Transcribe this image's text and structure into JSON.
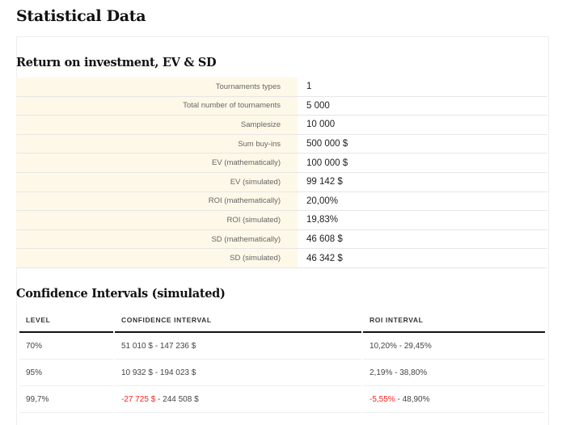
{
  "page_title": "Statistical Data",
  "roi_section": {
    "title": "Return on investment, EV & SD",
    "rows": [
      {
        "label": "Tournaments types",
        "value": "1"
      },
      {
        "label": "Total number of tournaments",
        "value": "5 000"
      },
      {
        "label": "Samplesize",
        "value": "10 000"
      },
      {
        "label": "Sum buy-ins",
        "value": "500 000 $"
      },
      {
        "label": "EV (mathematically)",
        "value": "100 000 $"
      },
      {
        "label": "EV (simulated)",
        "value": "99 142 $"
      },
      {
        "label": "ROI (mathematically)",
        "value": "20,00%"
      },
      {
        "label": "ROI (simulated)",
        "value": "19,83%"
      },
      {
        "label": "SD (mathematically)",
        "value": "46 608 $"
      },
      {
        "label": "SD (simulated)",
        "value": "46 342 $"
      }
    ]
  },
  "ci_section": {
    "title": "Confidence Intervals (simulated)",
    "headers": [
      "LEVEL",
      "CONFIDENCE INTERVAL",
      "ROI INTERVAL"
    ],
    "rows": [
      {
        "level": "70%",
        "ci_low": "51 010 $",
        "ci_high": "147 236 $",
        "roi_low": "10,20%",
        "roi_high": "29,45%",
        "negative": false
      },
      {
        "level": "95%",
        "ci_low": "10 932 $",
        "ci_high": "194 023 $",
        "roi_low": "2,19%",
        "roi_high": "38,80%",
        "negative": false
      },
      {
        "level": "99,7%",
        "ci_low": "-27 725 $",
        "ci_high": "244 508 $",
        "roi_low": "-5,55%",
        "roi_high": "48,90%",
        "negative": true
      }
    ],
    "separator": " - "
  },
  "colors": {
    "label_bg": "#fdf8e8",
    "negative": "#ff2020"
  }
}
